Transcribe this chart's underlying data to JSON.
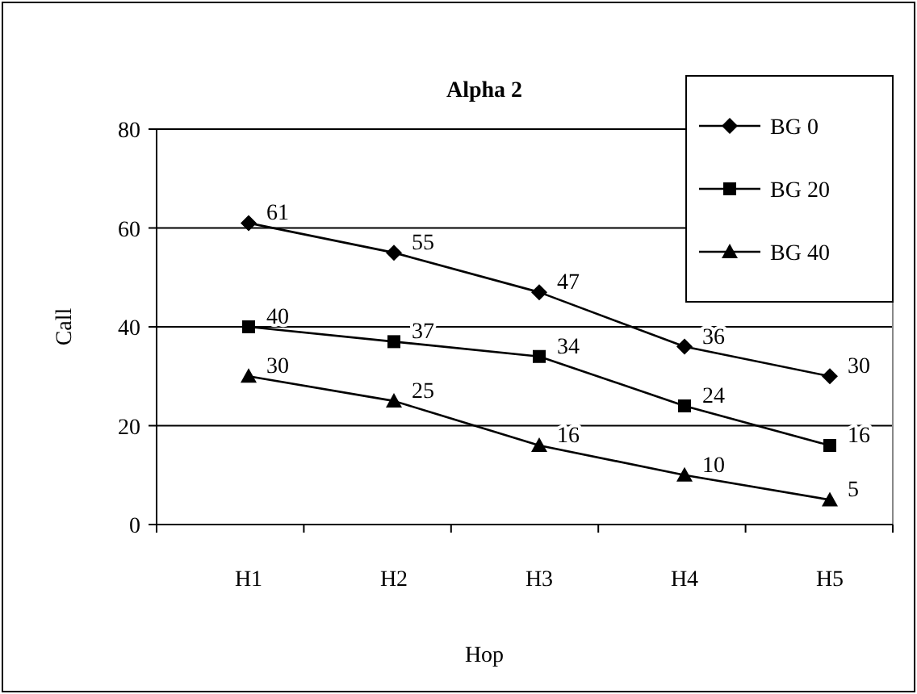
{
  "chart_data": {
    "type": "line",
    "title": "Alpha 2",
    "xlabel": "Hop",
    "ylabel": "Call",
    "categories": [
      "H1",
      "H2",
      "H3",
      "H4",
      "H5"
    ],
    "series": [
      {
        "name": "BG 0",
        "color": "#000000",
        "marker": "diamond",
        "values": [
          61,
          55,
          47,
          36,
          30
        ]
      },
      {
        "name": "BG 20",
        "color": "#000000",
        "marker": "square",
        "values": [
          40,
          37,
          34,
          24,
          16
        ]
      },
      {
        "name": "BG 40",
        "color": "#000000",
        "marker": "triangle",
        "values": [
          30,
          25,
          16,
          10,
          5
        ]
      }
    ],
    "ylim": [
      0,
      80
    ],
    "yticks": [
      0,
      20,
      40,
      60,
      80
    ],
    "grid": "y",
    "legend": "top right",
    "data_labels": true,
    "line_style": "solid"
  }
}
